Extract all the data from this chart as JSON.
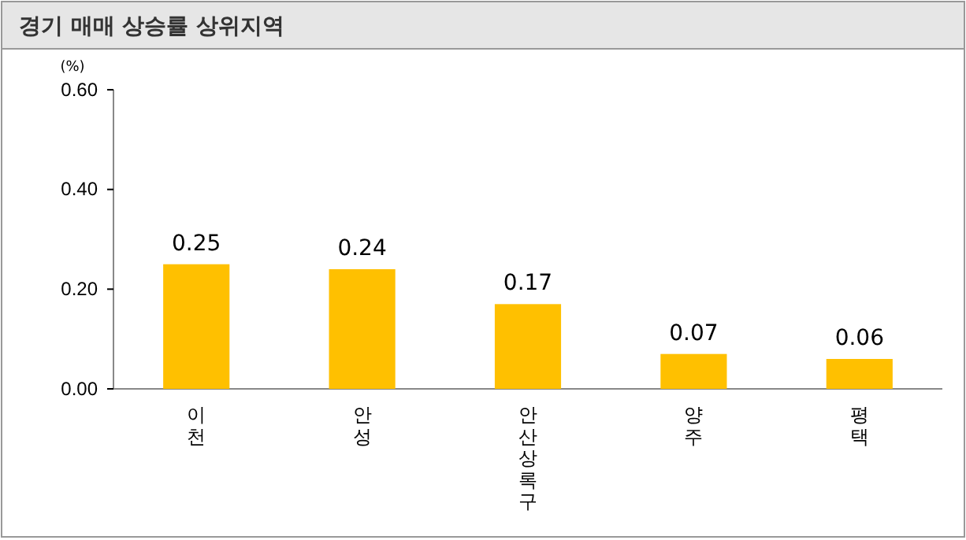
{
  "chart_data": {
    "type": "bar",
    "title": "경기 매매 상승률 상위지역",
    "ylabel": "(%)",
    "categories": [
      "이천",
      "안성",
      "안산상록구",
      "양주",
      "평택"
    ],
    "values": [
      0.25,
      0.24,
      0.17,
      0.07,
      0.06
    ],
    "color": "#ffc000",
    "ylim": [
      0,
      0.6
    ],
    "yticks": [
      {
        "value": 0,
        "label": "0.00"
      },
      {
        "value": 0.2,
        "label": "0.20"
      },
      {
        "value": 0.4,
        "label": "0.40"
      },
      {
        "value": 0.6,
        "label": "0.60"
      }
    ],
    "data_labels": true,
    "grid": false
  }
}
